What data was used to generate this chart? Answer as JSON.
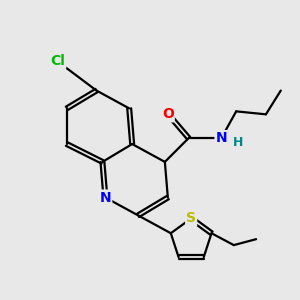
{
  "background_color": "#e8e8e8",
  "bond_color": "#000000",
  "atom_colors": {
    "O": "#ff0000",
    "N": "#0000ff",
    "Cl": "#00bb00",
    "S": "#bbbb00",
    "H": "#008888"
  },
  "font_size": 10,
  "figsize": [
    3.0,
    3.0
  ],
  "dpi": 100
}
